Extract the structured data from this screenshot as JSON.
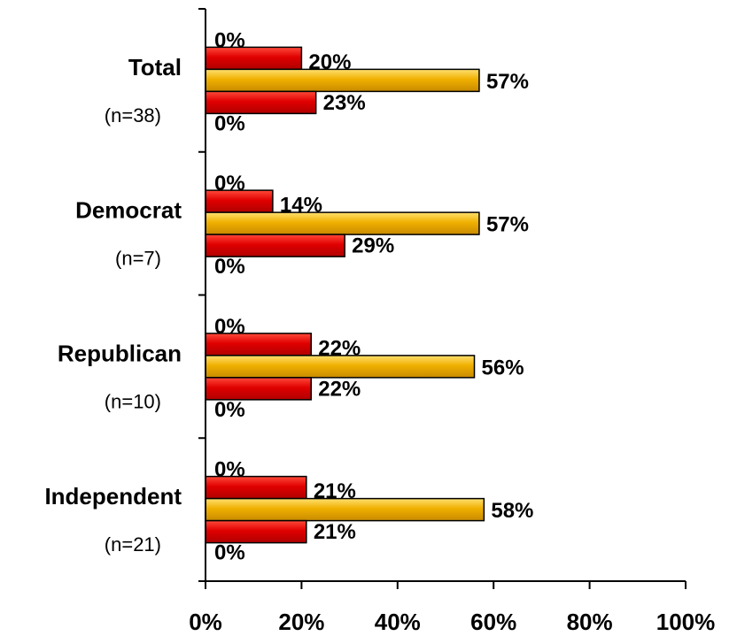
{
  "chart_data": {
    "type": "bar",
    "orientation": "horizontal",
    "categories": [
      {
        "name": "Total",
        "n": "(n=38)"
      },
      {
        "name": "Democrat",
        "n": "(n=7)"
      },
      {
        "name": "Republican",
        "n": "(n=10)"
      },
      {
        "name": "Independent",
        "n": "(n=21)"
      }
    ],
    "series": [
      {
        "color": "#e00000",
        "values": [
          0,
          0,
          0,
          0
        ]
      },
      {
        "color": "#e00000",
        "values": [
          20,
          14,
          22,
          21
        ]
      },
      {
        "color": "#f0b000",
        "values": [
          57,
          57,
          56,
          58
        ]
      },
      {
        "color": "#e00000",
        "values": [
          23,
          29,
          22,
          21
        ]
      },
      {
        "color": "#e00000",
        "values": [
          0,
          0,
          0,
          0
        ]
      }
    ],
    "value_suffix": "%",
    "xlim": [
      0,
      100
    ],
    "xticks": [
      0,
      20,
      40,
      60,
      80,
      100
    ],
    "xtick_labels": [
      "0%",
      "20%",
      "40%",
      "60%",
      "80%",
      "100%"
    ],
    "grid": false,
    "legend": "none",
    "colors": {
      "red": "#e00000",
      "red_dark": "#b00000",
      "gold": "#f0b000",
      "gold_light": "#ffe070"
    }
  }
}
